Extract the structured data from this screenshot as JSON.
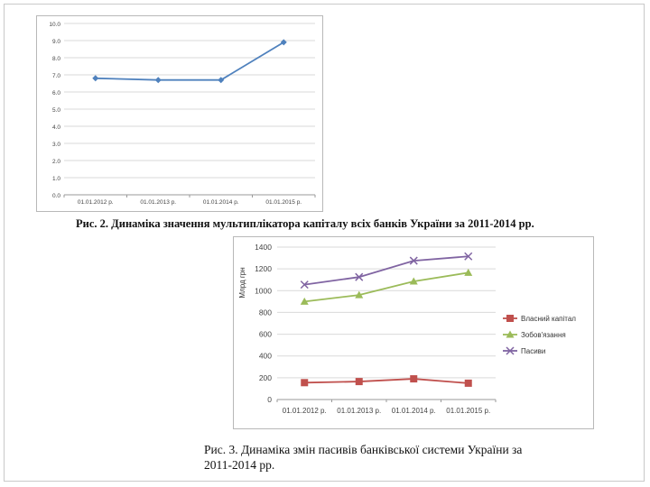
{
  "charts": {
    "chart1": {
      "caption": "Рис. 2. Динаміка значення мультиплікатора капіталу всіх банків України за 2011-2014 рр."
    },
    "chart2": {
      "caption_line1": "Рис. 3. Динаміка змін пасивів банківської системи України за",
      "caption_line2": "2011-2014 рр."
    }
  },
  "colors": {
    "series1": "#4f81bd",
    "capital": "#c0504d",
    "liabilities": "#9bbb59",
    "passives": "#8064a2",
    "grid": "#d9d9d9"
  },
  "chart_data": [
    {
      "type": "line",
      "title": "",
      "categories": [
        "01.01.2012 р.",
        "01.01.2013 р.",
        "01.01.2014 р.",
        "01.01.2015 р."
      ],
      "series": [
        {
          "values": [
            6.8,
            6.7,
            6.7,
            8.9
          ]
        }
      ],
      "ylim": [
        0,
        10
      ],
      "yticks": [
        "0.0",
        "1.0",
        "2.0",
        "3.0",
        "4.0",
        "5.0",
        "6.0",
        "7.0",
        "8.0",
        "9.0",
        "10.0"
      ],
      "grid": true,
      "legend": "none"
    },
    {
      "type": "line",
      "title": "",
      "ylabel": "Млрд грн",
      "categories": [
        "01.01.2012 р.",
        "01.01.2013 р.",
        "01.01.2014 р.",
        "01.01.2015 р."
      ],
      "series": [
        {
          "name": "Власний капітал",
          "values": [
            155,
            165,
            190,
            150
          ]
        },
        {
          "name": "Зобов'язання",
          "values": [
            900,
            960,
            1085,
            1165
          ]
        },
        {
          "name": "Пасиви",
          "values": [
            1055,
            1125,
            1275,
            1315
          ]
        }
      ],
      "ylim": [
        0,
        1400
      ],
      "yticks": [
        "0",
        "200",
        "400",
        "600",
        "800",
        "1000",
        "1200",
        "1400"
      ],
      "grid": true,
      "legend": "right"
    }
  ]
}
